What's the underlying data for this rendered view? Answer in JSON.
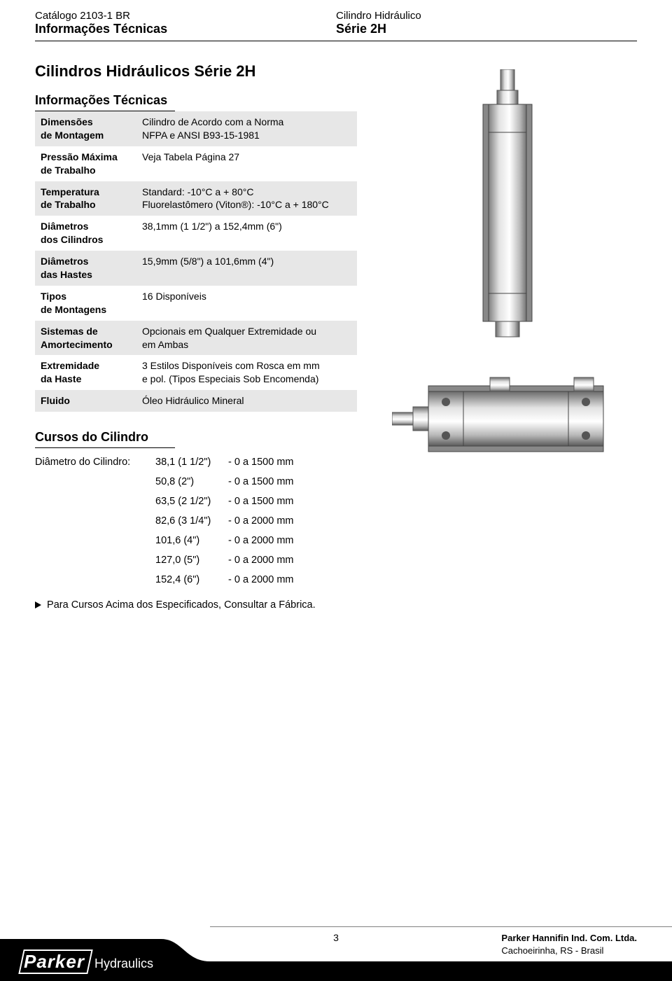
{
  "header": {
    "catalog_line": "Catálogo 2103-1 BR",
    "left_bold": "Informações Técnicas",
    "right_line": "Cilindro Hidráulico",
    "right_bold": "Série 2H"
  },
  "page_title": "Cilindros Hidráulicos Série 2H",
  "spec_section_title": "Informações Técnicas",
  "spec_rows": [
    {
      "shade": true,
      "label": "Dimensões\nde Montagem",
      "value": "Cilindro de Acordo com a Norma\nNFPA e ANSI B93-15-1981"
    },
    {
      "shade": false,
      "label": "Pressão Máxima\nde Trabalho",
      "value": "Veja Tabela Página 27"
    },
    {
      "shade": true,
      "label": "Temperatura\nde Trabalho",
      "value": "Standard: -10°C a + 80°C\nFluorelastômero (Viton®): -10°C a + 180°C"
    },
    {
      "shade": false,
      "label": "Diâmetros\ndos Cilindros",
      "value": "38,1mm (1 1/2\") a 152,4mm (6\")"
    },
    {
      "shade": true,
      "label": "Diâmetros\ndas Hastes",
      "value": "15,9mm (5/8\") a 101,6mm (4\")"
    },
    {
      "shade": false,
      "label": "Tipos\nde Montagens",
      "value": "16 Disponíveis"
    },
    {
      "shade": true,
      "label": "Sistemas de\nAmortecimento",
      "value": "Opcionais em Qualquer Extremidade ou\nem Ambas"
    },
    {
      "shade": false,
      "label": "Extremidade\nda Haste",
      "value": "3 Estilos Disponíveis com Rosca em mm\ne pol. (Tipos Especiais Sob Encomenda)"
    },
    {
      "shade": true,
      "label": "Fluido",
      "value": "Óleo Hidráulico Mineral"
    }
  ],
  "cursos": {
    "title": "Cursos do Cilindro",
    "lead": "Diâmetro do Cilindro:",
    "items": [
      {
        "size": "38,1 (1 1/2\")",
        "range": "- 0 a 1500 mm"
      },
      {
        "size": "50,8 (2\")",
        "range": "- 0 a 1500 mm"
      },
      {
        "size": "63,5 (2 1/2\")",
        "range": "- 0 a 1500 mm"
      },
      {
        "size": "82,6 (3 1/4\")",
        "range": "- 0 a 2000 mm"
      },
      {
        "size": "101,6 (4\")",
        "range": "- 0 a 2000 mm"
      },
      {
        "size": "127,0 (5\")",
        "range": "- 0 a 2000 mm"
      },
      {
        "size": "152,4 (6\")",
        "range": "- 0 a 2000 mm"
      }
    ]
  },
  "footnote": "Para Cursos Acima dos Especificados, Consultar a Fábrica.",
  "footer": {
    "page_number": "3",
    "brand_line1": "Parker Hannifin Ind. Com. Ltda.",
    "brand_line2": "Cachoeirinha, RS - Brasil",
    "logo_main": "Parker",
    "logo_sub": "Hydraulics"
  },
  "images": {
    "vertical_cylinder_label": "Hydraulic cylinder (vertical)",
    "horizontal_cylinder_label": "Hydraulic cylinder (horizontal, tie-rod)"
  },
  "colors": {
    "shade": "#e7e7e7",
    "footer_fill": "#000000",
    "metal_light": "#d8d8d8",
    "metal_mid": "#a8a8a8",
    "metal_dark": "#6b6b6b"
  }
}
